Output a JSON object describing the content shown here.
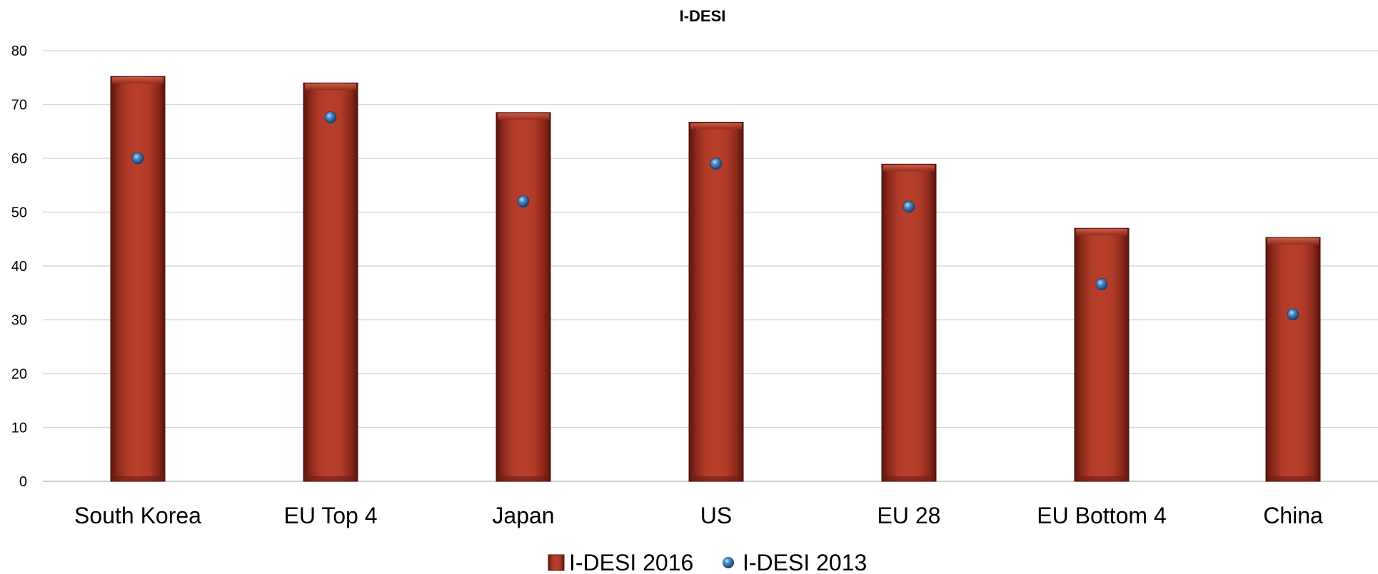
{
  "chart_data": {
    "type": "bar",
    "title": "I-DESI",
    "xlabel": "",
    "ylabel": "",
    "ylim": [
      0,
      80
    ],
    "yticks": [
      0,
      10,
      20,
      30,
      40,
      50,
      60,
      70,
      80
    ],
    "grid": "horizontal",
    "legend_position": "bottom",
    "categories": [
      "South Korea",
      "EU Top 4",
      "Japan",
      "US",
      "EU 28",
      "EU Bottom 4",
      "China"
    ],
    "series": [
      {
        "name": "I-DESI 2016",
        "kind": "bar",
        "color": "#a93525",
        "values": [
          75.2,
          74.0,
          68.5,
          66.7,
          58.9,
          47.0,
          45.3
        ]
      },
      {
        "name": "I-DESI 2013",
        "kind": "marker",
        "color": "#2f6fa8",
        "values": [
          60.0,
          67.6,
          52.0,
          59.0,
          51.0,
          36.6,
          31.0
        ]
      }
    ]
  }
}
